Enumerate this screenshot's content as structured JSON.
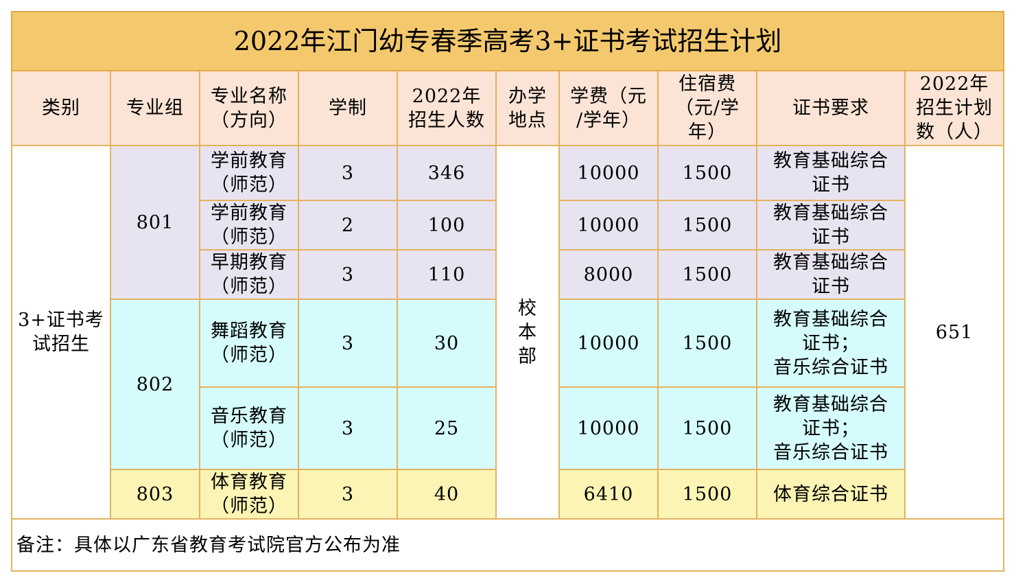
{
  "title": "2022年江门幼专春季高考3+证书考试招生计划",
  "headers": {
    "category": "类别",
    "group": "专业组",
    "major": [
      "专业名称",
      "（方向）"
    ],
    "duration": "学制",
    "enroll": [
      "2022年",
      "招生人数"
    ],
    "location": [
      "办学",
      "地点"
    ],
    "tuition": [
      "学费（元",
      "/学年）"
    ],
    "lodging": [
      "住宿费",
      "（元/学",
      "年）"
    ],
    "cert": "证书要求",
    "plan": [
      "2022年",
      "招生计划",
      "数（人）"
    ]
  },
  "category": [
    "3+证书考",
    "试招生"
  ],
  "location": [
    "校",
    "本",
    "部"
  ],
  "plan_total": "651",
  "groups": [
    "801",
    "802",
    "803"
  ],
  "rows": [
    {
      "major": [
        "学前教育",
        "（师范）"
      ],
      "duration": "3",
      "enroll": "346",
      "tuition": "10000",
      "lodging": "1500",
      "cert": [
        "教育基础综合",
        "证书"
      ]
    },
    {
      "major": [
        "学前教育",
        "（师范）"
      ],
      "duration": "2",
      "enroll": "100",
      "tuition": "10000",
      "lodging": "1500",
      "cert": [
        "教育基础综合",
        "证书"
      ]
    },
    {
      "major": [
        "早期教育",
        "（师范）"
      ],
      "duration": "3",
      "enroll": "110",
      "tuition": "8000",
      "lodging": "1500",
      "cert": [
        "教育基础综合",
        "证书"
      ]
    },
    {
      "major": [
        "舞蹈教育",
        "（师范）"
      ],
      "duration": "3",
      "enroll": "30",
      "tuition": "10000",
      "lodging": "1500",
      "cert": [
        "教育基础综合",
        "证书；",
        "音乐综合证书"
      ]
    },
    {
      "major": [
        "音乐教育",
        "（师范）"
      ],
      "duration": "3",
      "enroll": "25",
      "tuition": "10000",
      "lodging": "1500",
      "cert": [
        "教育基础综合",
        "证书；",
        "音乐综合证书"
      ]
    },
    {
      "major": [
        "体育教育",
        "（师范）"
      ],
      "duration": "3",
      "enroll": "40",
      "tuition": "6410",
      "lodging": "1500",
      "cert": [
        "体育综合证书"
      ]
    }
  ],
  "note": "备注：具体以广东省教育考试院官方公布为准",
  "colors": {
    "title_bg": "#f4c96d",
    "header_bg": "#fbe4d5",
    "group801_bg": "#e8e3f0",
    "group802_bg": "#d6fbfd",
    "group803_bg": "#fbf4b4",
    "border": "#e3b25f"
  }
}
